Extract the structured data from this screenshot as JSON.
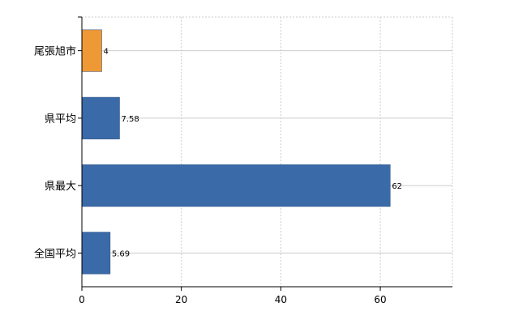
{
  "chart_data": {
    "type": "bar",
    "orientation": "horizontal",
    "categories": [
      "尾張旭市",
      "県平均",
      "県最大",
      "全国平均"
    ],
    "values": [
      4,
      7.58,
      62,
      5.69
    ],
    "data_labels": [
      "4",
      "7.58",
      "62",
      "5.69"
    ],
    "bar_colors": [
      "#ee9836",
      "#3a6aa8",
      "#3a6aa8",
      "#3a6aa8"
    ],
    "x_ticks": [
      0,
      20,
      40,
      60
    ],
    "xlim": [
      0,
      74.5
    ],
    "title": "",
    "xlabel": "",
    "ylabel": "",
    "grid": true,
    "legend": "none"
  }
}
